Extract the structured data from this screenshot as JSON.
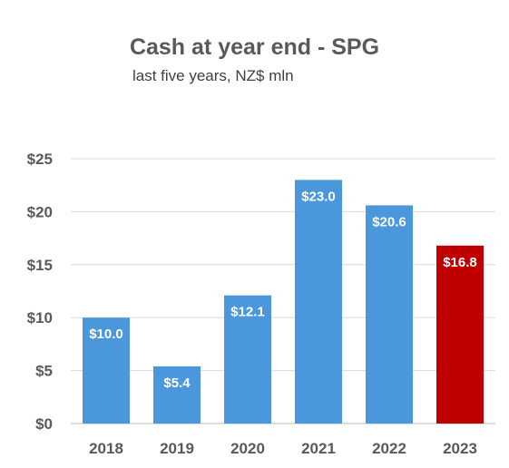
{
  "chart_data": {
    "type": "bar",
    "title": "Cash at year end - SPG",
    "subtitle": "last five years, NZ$ mln",
    "categories": [
      "2018",
      "2019",
      "2020",
      "2021",
      "2022",
      "2023"
    ],
    "values": [
      10.0,
      5.4,
      12.1,
      23.0,
      20.6,
      16.8
    ],
    "data_labels": [
      "$10.0",
      "$5.4",
      "$12.1",
      "$23.0",
      "$20.6",
      "$16.8"
    ],
    "bar_colors": [
      "#4A98DB",
      "#4A98DB",
      "#4A98DB",
      "#4A98DB",
      "#4A98DB",
      "#C00000"
    ],
    "yticks": [
      {
        "value": 0,
        "label": "$0"
      },
      {
        "value": 5,
        "label": "$5"
      },
      {
        "value": 10,
        "label": "$10"
      },
      {
        "value": 15,
        "label": "$15"
      },
      {
        "value": 20,
        "label": "$20"
      },
      {
        "value": 25,
        "label": "$25"
      }
    ],
    "ylim": [
      0,
      25
    ],
    "grid": true,
    "xlabel": "",
    "ylabel": ""
  }
}
